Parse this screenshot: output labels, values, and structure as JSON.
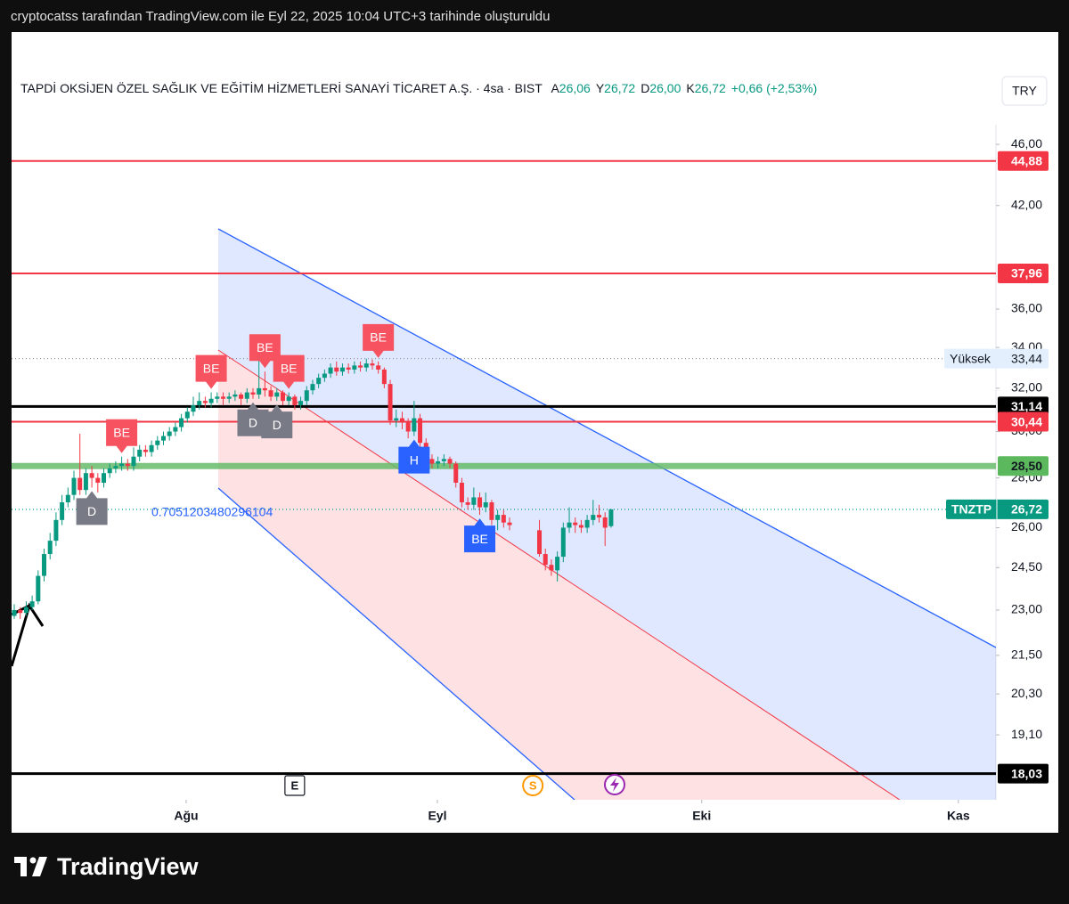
{
  "header": {
    "caption": "cryptocatss tarafından TradingView.com ile Eyl 22, 2025 10:04 UTC+3 tarihinde oluşturuldu"
  },
  "footer": {
    "brand": "TradingView"
  },
  "chart_data": {
    "type": "candlestick",
    "title": "TAPDİ OKSİJEN ÖZEL SAĞLIK VE EĞİTİM HİZMETLERİ SANAYİ TİCARET A.Ş. · 4sa · BIST",
    "legend_fields": [
      {
        "name": "A",
        "value": "26,06"
      },
      {
        "name": "Y",
        "value": "26,72"
      },
      {
        "name": "D",
        "value": "26,00"
      },
      {
        "name": "K",
        "value": "26,72"
      }
    ],
    "change": "+0,66 (+2,53%)",
    "currency": "TRY",
    "annotation": "0.7051203480296104",
    "log_scale": true,
    "grid": false,
    "up_color": "#089981",
    "down_color": "#f23645",
    "x": [
      0,
      1,
      2,
      3,
      4,
      5,
      6,
      7,
      8,
      9,
      10,
      11,
      12,
      13,
      14,
      15,
      16,
      17,
      18,
      19,
      20,
      21,
      22,
      23,
      24,
      25,
      26,
      27,
      28,
      29,
      30,
      31,
      32,
      33,
      34,
      35,
      36,
      37,
      38,
      39,
      40,
      41,
      42,
      43,
      44,
      45,
      46,
      47,
      48,
      49,
      50,
      51,
      52,
      53,
      54,
      55,
      56,
      57,
      58,
      59,
      60,
      61,
      62,
      63,
      64,
      65,
      66,
      67,
      68,
      69,
      70,
      71,
      72,
      73,
      74,
      75,
      76,
      77,
      78,
      79,
      80,
      81,
      82,
      83,
      88,
      89,
      90,
      91,
      92,
      93,
      94,
      95,
      96,
      97,
      98,
      99,
      100
    ],
    "open": [
      22.8,
      23.0,
      22.9,
      23.1,
      23.3,
      24.2,
      25.0,
      25.5,
      26.3,
      27.0,
      27.3,
      28.0,
      27.5,
      28.2,
      28.0,
      27.8,
      28.2,
      28.4,
      28.5,
      28.6,
      28.5,
      28.9,
      29.2,
      29.1,
      29.4,
      29.6,
      29.8,
      30.0,
      30.2,
      30.6,
      30.9,
      31.2,
      31.4,
      31.3,
      31.5,
      31.6,
      31.5,
      31.6,
      31.7,
      31.5,
      31.8,
      31.7,
      32.0,
      31.9,
      31.6,
      31.8,
      31.4,
      31.6,
      31.2,
      31.4,
      31.9,
      32.2,
      32.5,
      32.7,
      33.0,
      32.8,
      33.0,
      32.9,
      33.1,
      33.0,
      33.2,
      33.1,
      32.9,
      32.2,
      30.5,
      30.6,
      30.4,
      30.0,
      30.6,
      29.5,
      28.8,
      28.6,
      28.7,
      28.8,
      28.6,
      27.8,
      27.0,
      26.9,
      27.2,
      26.8,
      27.0,
      26.3,
      26.5,
      26.2,
      25.9,
      25.0,
      24.6,
      24.4,
      24.9,
      26.0,
      26.2,
      26.1,
      26.0,
      26.3,
      26.5,
      26.4,
      26.06
    ],
    "high": [
      23.2,
      23.1,
      23.3,
      23.5,
      24.4,
      25.2,
      25.8,
      26.6,
      27.3,
      27.6,
      28.3,
      29.9,
      28.4,
      28.5,
      28.2,
      28.4,
      28.6,
      28.7,
      28.9,
      28.8,
      29.3,
      29.4,
      29.4,
      29.6,
      29.8,
      30.0,
      30.2,
      30.4,
      30.8,
      31.1,
      31.6,
      31.8,
      31.6,
      31.8,
      31.8,
      31.8,
      31.8,
      31.9,
      31.8,
      32.0,
      32.0,
      33.4,
      32.8,
      32.1,
      32.0,
      31.9,
      31.8,
      31.7,
      31.6,
      32.1,
      32.4,
      32.7,
      32.9,
      33.2,
      33.3,
      33.2,
      33.2,
      33.3,
      33.3,
      33.44,
      33.4,
      33.3,
      33.0,
      32.4,
      31.0,
      30.9,
      30.6,
      31.4,
      30.8,
      29.7,
      29.0,
      28.9,
      29.0,
      28.9,
      28.7,
      28.0,
      27.2,
      27.6,
      27.4,
      27.4,
      27.1,
      26.7,
      26.7,
      26.4,
      26.3,
      25.2,
      24.8,
      25.1,
      26.2,
      26.8,
      26.4,
      26.3,
      26.5,
      27.1,
      26.9,
      26.6,
      26.72
    ],
    "low": [
      22.7,
      22.7,
      22.8,
      23.0,
      23.2,
      24.0,
      24.8,
      25.3,
      26.1,
      26.8,
      27.1,
      27.3,
      27.3,
      27.6,
      27.4,
      27.6,
      28.0,
      28.2,
      28.3,
      28.3,
      28.3,
      28.7,
      28.9,
      28.9,
      29.2,
      29.4,
      29.6,
      29.8,
      30.0,
      30.4,
      30.7,
      31.0,
      31.1,
      31.1,
      31.3,
      31.2,
      31.3,
      31.4,
      31.2,
      31.3,
      31.5,
      31.5,
      31.6,
      31.4,
      31.4,
      31.2,
      31.2,
      31.0,
      31.0,
      31.2,
      31.7,
      32.0,
      32.3,
      32.5,
      32.6,
      32.6,
      32.7,
      32.7,
      32.8,
      32.8,
      32.9,
      32.7,
      32.0,
      30.3,
      30.2,
      30.1,
      29.7,
      29.8,
      29.3,
      28.6,
      28.4,
      28.4,
      28.5,
      28.4,
      27.6,
      26.8,
      26.7,
      26.7,
      26.5,
      26.6,
      26.1,
      25.9,
      26.0,
      25.9,
      24.9,
      24.4,
      24.2,
      24.0,
      24.7,
      25.8,
      25.8,
      25.8,
      25.8,
      26.1,
      26.2,
      25.3,
      26.0
    ],
    "close": [
      23.0,
      22.9,
      23.1,
      23.3,
      24.2,
      25.0,
      25.5,
      26.3,
      27.0,
      27.3,
      28.0,
      27.5,
      28.2,
      28.0,
      27.8,
      28.2,
      28.4,
      28.5,
      28.6,
      28.5,
      28.9,
      29.2,
      29.1,
      29.4,
      29.6,
      29.8,
      30.0,
      30.2,
      30.6,
      30.9,
      31.2,
      31.4,
      31.3,
      31.5,
      31.6,
      31.5,
      31.6,
      31.7,
      31.5,
      31.8,
      31.7,
      32.0,
      31.9,
      31.6,
      31.8,
      31.4,
      31.6,
      31.2,
      31.4,
      31.9,
      32.2,
      32.5,
      32.7,
      33.0,
      32.8,
      33.0,
      32.9,
      33.1,
      33.0,
      33.2,
      33.1,
      32.9,
      32.2,
      30.5,
      30.6,
      30.4,
      30.0,
      30.6,
      29.5,
      28.8,
      28.6,
      28.7,
      28.8,
      28.6,
      27.8,
      27.0,
      26.9,
      27.2,
      26.8,
      27.0,
      26.3,
      26.5,
      26.2,
      26.1,
      25.0,
      24.6,
      24.4,
      24.9,
      26.0,
      26.2,
      26.1,
      26.0,
      26.3,
      26.5,
      26.4,
      26.0,
      26.72
    ],
    "xlim": [
      -0.45,
      164.5
    ],
    "xticks": [
      {
        "value": 28.8,
        "label": "Ağu"
      },
      {
        "value": 70.9,
        "label": "Eyl"
      },
      {
        "value": 115.2,
        "label": "Eki"
      },
      {
        "value": 158.2,
        "label": "Kas"
      }
    ],
    "ylim": [
      17.34,
      47.37
    ],
    "yticks": [
      {
        "value": 46,
        "label": "46,00"
      },
      {
        "value": 42,
        "label": "42,00"
      },
      {
        "value": 36,
        "label": "36,00"
      },
      {
        "value": 34,
        "label": "34,00"
      },
      {
        "value": 32,
        "label": "32,00"
      },
      {
        "value": 30,
        "label": "30,00"
      },
      {
        "value": 28,
        "label": "28,00"
      },
      {
        "value": 26,
        "label": "26,00"
      },
      {
        "value": 24.5,
        "label": "24,50"
      },
      {
        "value": 23,
        "label": "23,00"
      },
      {
        "value": 21.5,
        "label": "21,50"
      },
      {
        "value": 20.3,
        "label": "20,30"
      },
      {
        "value": 19.1,
        "label": "19,10"
      }
    ],
    "levels": [
      {
        "value": 44.88,
        "label": "44,88",
        "color": "#f23645"
      },
      {
        "value": 37.96,
        "label": "37,96",
        "color": "#f23645"
      },
      {
        "value": 31.14,
        "label": "31,14",
        "color": "#000000"
      },
      {
        "value": 30.44,
        "label": "30,44",
        "color": "#f23645"
      },
      {
        "value": 28.5,
        "label": "28,50",
        "color": "#66bb6a"
      },
      {
        "value": 18.03,
        "label": "18,03",
        "color": "#000000"
      }
    ],
    "high_line": {
      "name": "Yüksek",
      "value": 33.44,
      "label": "33,44"
    },
    "last_line": {
      "name": "TNZTP",
      "value": 26.72,
      "label": "26,72",
      "color": "#089981"
    },
    "markers": [
      {
        "text": "BE",
        "x": 18,
        "position": "above",
        "color": "#f7525f"
      },
      {
        "text": "D",
        "x": 13,
        "position": "below",
        "color": "#787b86"
      },
      {
        "text": "BE",
        "x": 33,
        "position": "above",
        "color": "#f7525f"
      },
      {
        "text": "BE",
        "x": 42,
        "position": "above",
        "color": "#f7525f"
      },
      {
        "text": "BE",
        "x": 46,
        "position": "above",
        "color": "#f7525f"
      },
      {
        "text": "D",
        "x": 40,
        "position": "below",
        "color": "#787b86"
      },
      {
        "text": "D",
        "x": 44,
        "position": "below",
        "color": "#787b86"
      },
      {
        "text": "BE",
        "x": 61,
        "position": "above",
        "color": "#f7525f"
      },
      {
        "text": "H",
        "x": 67,
        "position": "below",
        "color": "#2962ff"
      },
      {
        "text": "BE",
        "x": 78,
        "position": "below",
        "color": "#2962ff"
      }
    ],
    "events": [
      {
        "text": "E",
        "x": 47,
        "color": "#131722"
      },
      {
        "text": "S",
        "x": 86.9,
        "color": "#ff9800"
      }
    ]
  }
}
